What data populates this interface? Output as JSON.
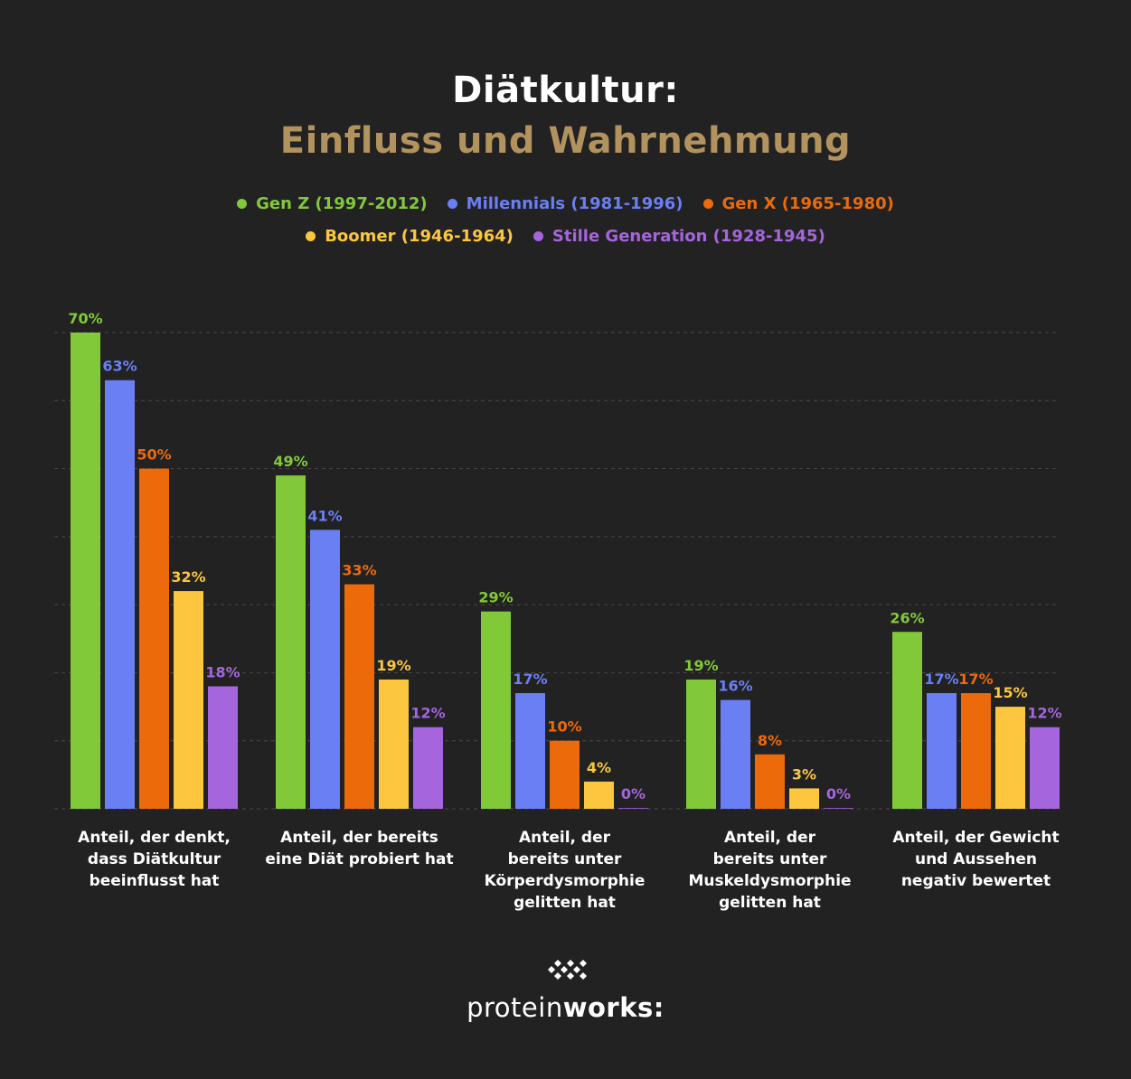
{
  "header": {
    "title_line1": "Diätkultur:",
    "title_line2": "Einfluss und Wahrnehmung"
  },
  "legend": [
    {
      "label": "Gen Z (1997-2012)",
      "color": "#82c93a"
    },
    {
      "label": "Millennials (1981-1996)",
      "color": "#6b7ff5"
    },
    {
      "label": "Gen X (1965-1980)",
      "color": "#ec6a0a"
    },
    {
      "label": "Boomer (1946-1964)",
      "color": "#fcc73e"
    },
    {
      "label": "Stille Generation (1928-1945)",
      "color": "#a565dc"
    }
  ],
  "chart_data": {
    "type": "bar",
    "title": "Diätkultur: Einfluss und Wahrnehmung",
    "categories": [
      [
        "Anteil, der denkt,",
        "dass Diätkultur",
        "beeinflusst hat"
      ],
      [
        "Anteil, der bereits",
        "eine Diät probiert hat"
      ],
      [
        "Anteil, der",
        "bereits unter",
        "Körperdysmorphie",
        "gelitten hat"
      ],
      [
        "Anteil, der",
        "bereits unter",
        "Muskeldysmorphie",
        "gelitten hat"
      ],
      [
        "Anteil, der Gewicht",
        "und Aussehen",
        "negativ bewertet"
      ]
    ],
    "series": [
      {
        "name": "Gen Z (1997-2012)",
        "color": "#82c93a",
        "values": [
          70,
          49,
          29,
          19,
          26
        ]
      },
      {
        "name": "Millennials (1981-1996)",
        "color": "#6b7ff5",
        "values": [
          63,
          41,
          17,
          16,
          17
        ]
      },
      {
        "name": "Gen X (1965-1980)",
        "color": "#ec6a0a",
        "values": [
          50,
          33,
          10,
          8,
          17
        ]
      },
      {
        "name": "Boomer (1946-1964)",
        "color": "#fcc73e",
        "values": [
          32,
          19,
          4,
          3,
          15
        ]
      },
      {
        "name": "Stille Generation (1928-1945)",
        "color": "#a565dc",
        "values": [
          18,
          12,
          0,
          0,
          12
        ]
      }
    ],
    "value_suffix": "%",
    "ylim": [
      0,
      70
    ],
    "gridlines": [
      10,
      20,
      30,
      40,
      50,
      60,
      70
    ],
    "grid": true,
    "xlabel": "",
    "ylabel": ""
  },
  "footer": {
    "brand_light": "protein",
    "brand_bold": "works",
    "brand_mark": ":"
  }
}
